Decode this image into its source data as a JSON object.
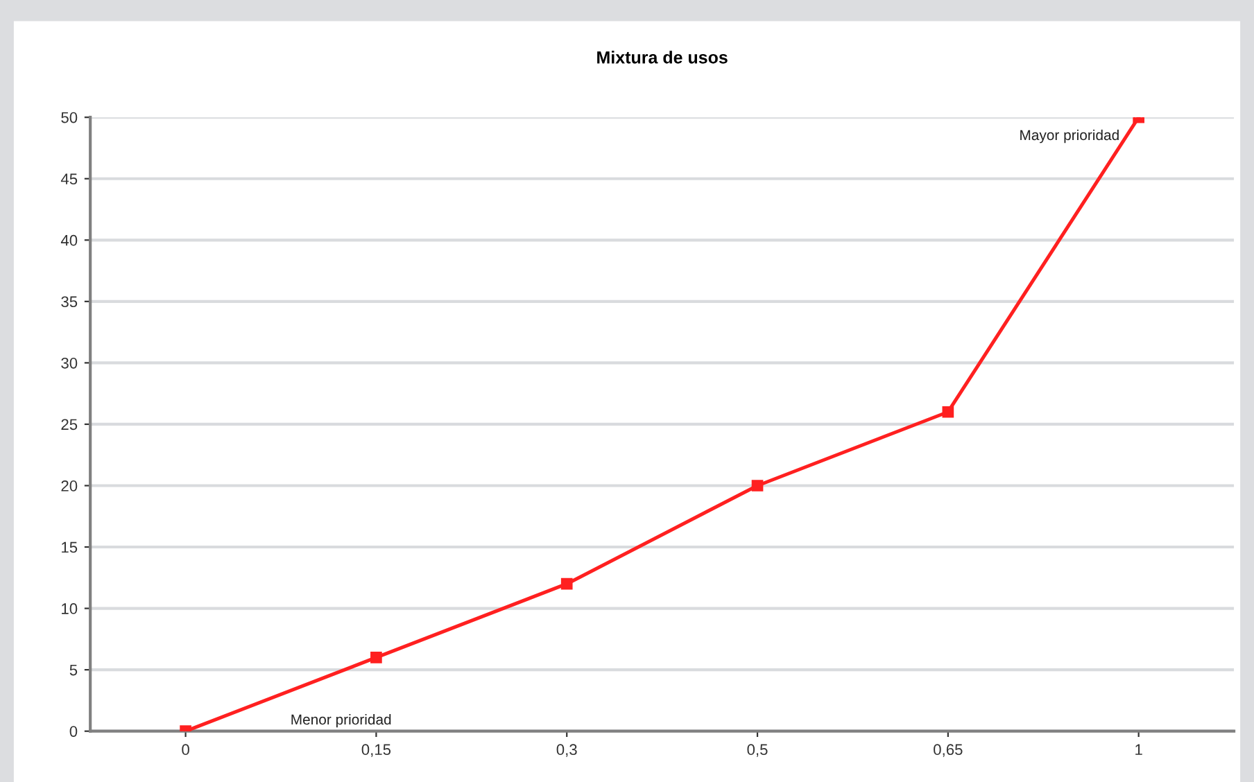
{
  "chart_data": {
    "type": "line",
    "title": "Mixtura de usos",
    "categories": [
      "0",
      "0,15",
      "0,3",
      "0,5",
      "0,65",
      "1"
    ],
    "series": [
      {
        "color": "#ff2020",
        "values": [
          0,
          6,
          12,
          20,
          26,
          50
        ]
      }
    ],
    "ylim": [
      0,
      50
    ],
    "yticks": [
      0,
      5,
      10,
      15,
      20,
      25,
      30,
      35,
      40,
      45,
      50
    ],
    "grid": "y",
    "marker": "square",
    "line_style": "solid",
    "legend": false,
    "annotations": [
      "Menor prioridad",
      "Mayor prioridad"
    ]
  }
}
